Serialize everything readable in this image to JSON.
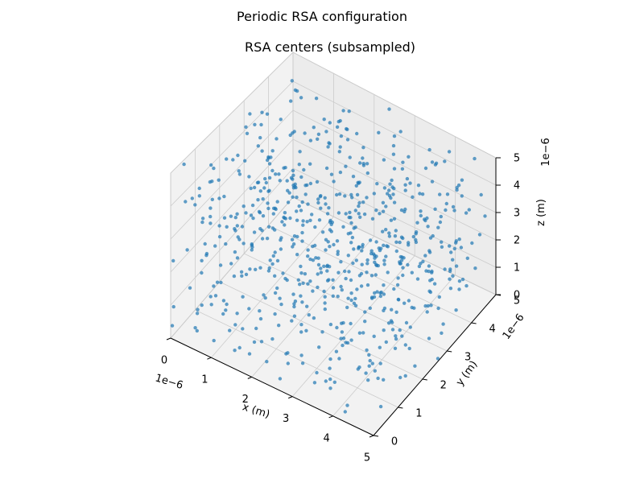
{
  "chart_data": {
    "type": "scatter",
    "subtype": "3d",
    "suptitle": "Periodic RSA configuration",
    "title": "RSA centers (subsampled)",
    "xlabel": "x (m)",
    "ylabel": "y (m)",
    "zlabel": "z (m)",
    "xlim": [
      0,
      5
    ],
    "ylim": [
      0,
      5
    ],
    "zlim": [
      0,
      5
    ],
    "xticks": [
      "0",
      "1",
      "2",
      "3",
      "4",
      "5"
    ],
    "yticks": [
      "0",
      "1",
      "2",
      "3",
      "4",
      "5"
    ],
    "zticks": [
      "0",
      "1",
      "2",
      "3",
      "4",
      "5"
    ],
    "x_offset_text": "1e−6",
    "y_offset_text": "1e−6",
    "z_offset_text": "1e−6",
    "grid": true,
    "point_count": 700,
    "point_color": "#1f77b4",
    "point_alpha": 0.7,
    "value_range": [
      0.0,
      5.0
    ],
    "pane_color": "#f2f2f2",
    "grid_color": "#cccccc"
  }
}
